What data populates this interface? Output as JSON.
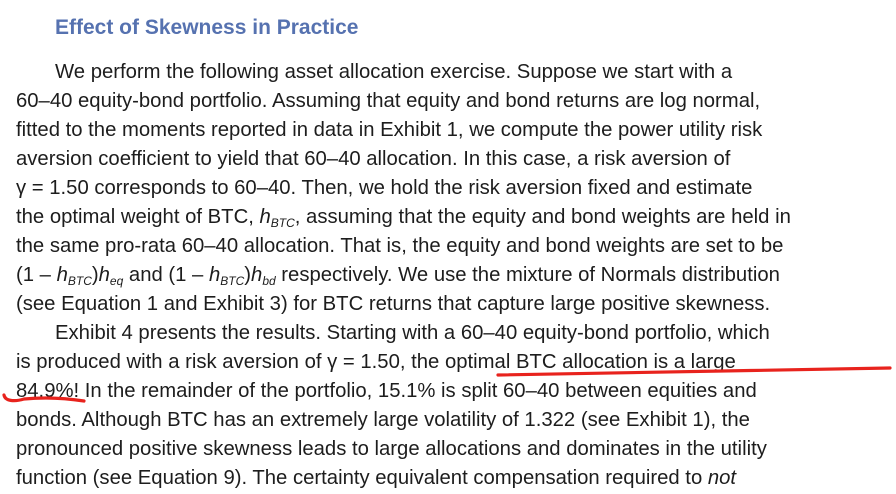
{
  "heading": "Effect of Skewness in Practice",
  "paragraph1": {
    "line1": "We perform the following asset allocation exercise. Suppose we start with a",
    "line2": "60–40 equity-bond portfolio. Assuming that equity and bond returns are log normal,",
    "line3": "fitted to the moments reported in data in Exhibit 1, we compute the power utility risk",
    "line4": "aversion coefficient to yield that 60–40 allocation. In this case, a risk aversion of",
    "line5": "γ = 1.50 corresponds to 60–40. Then, we hold the risk aversion fixed and estimate",
    "line6_a": "the optimal weight of BTC, ",
    "line6_h": "h",
    "line6_sub": "BTC",
    "line6_b": ", assuming that the equity and bond weights are held in",
    "line7": "the same pro-rata 60–40 allocation. That is, the equity and bond weights are set to be",
    "line8_a": "(1 – ",
    "line8_h1": "h",
    "line8_sub1": "BTC",
    "line8_b": ")",
    "line8_h2": "h",
    "line8_sub2": "eq",
    "line8_c": " and (1 – ",
    "line8_h3": "h",
    "line8_sub3": "BTC",
    "line8_d": ")",
    "line8_h4": "h",
    "line8_sub4": "bd",
    "line8_e": " respectively. We use the mixture of Normals distribution",
    "line9": "(see Equation 1 and Exhibit 3) for BTC returns that capture large positive skewness."
  },
  "paragraph2": {
    "line1": "Exhibit 4 presents the results. Starting with a 60–40 equity-bond portfolio, which",
    "line2_a": "is produced with a risk aversion of γ = 1.50, ",
    "line2_b": "the optimal BTC allocation is a large",
    "line3_a": "84.9%!",
    "line3_b": " In the remainder of the portfolio, 15.1% is split 60–40 between equities and",
    "line4": "bonds. Although BTC has an extremely large volatility of 1.322 (see Exhibit 1), the",
    "line5": "pronounced positive skewness leads to large allocations and dominates in the utility",
    "line6_a": "function (see Equation 9). The certainty equivalent compensation required to ",
    "line6_b": "not"
  },
  "annotation": {
    "color": "#e8231d"
  }
}
